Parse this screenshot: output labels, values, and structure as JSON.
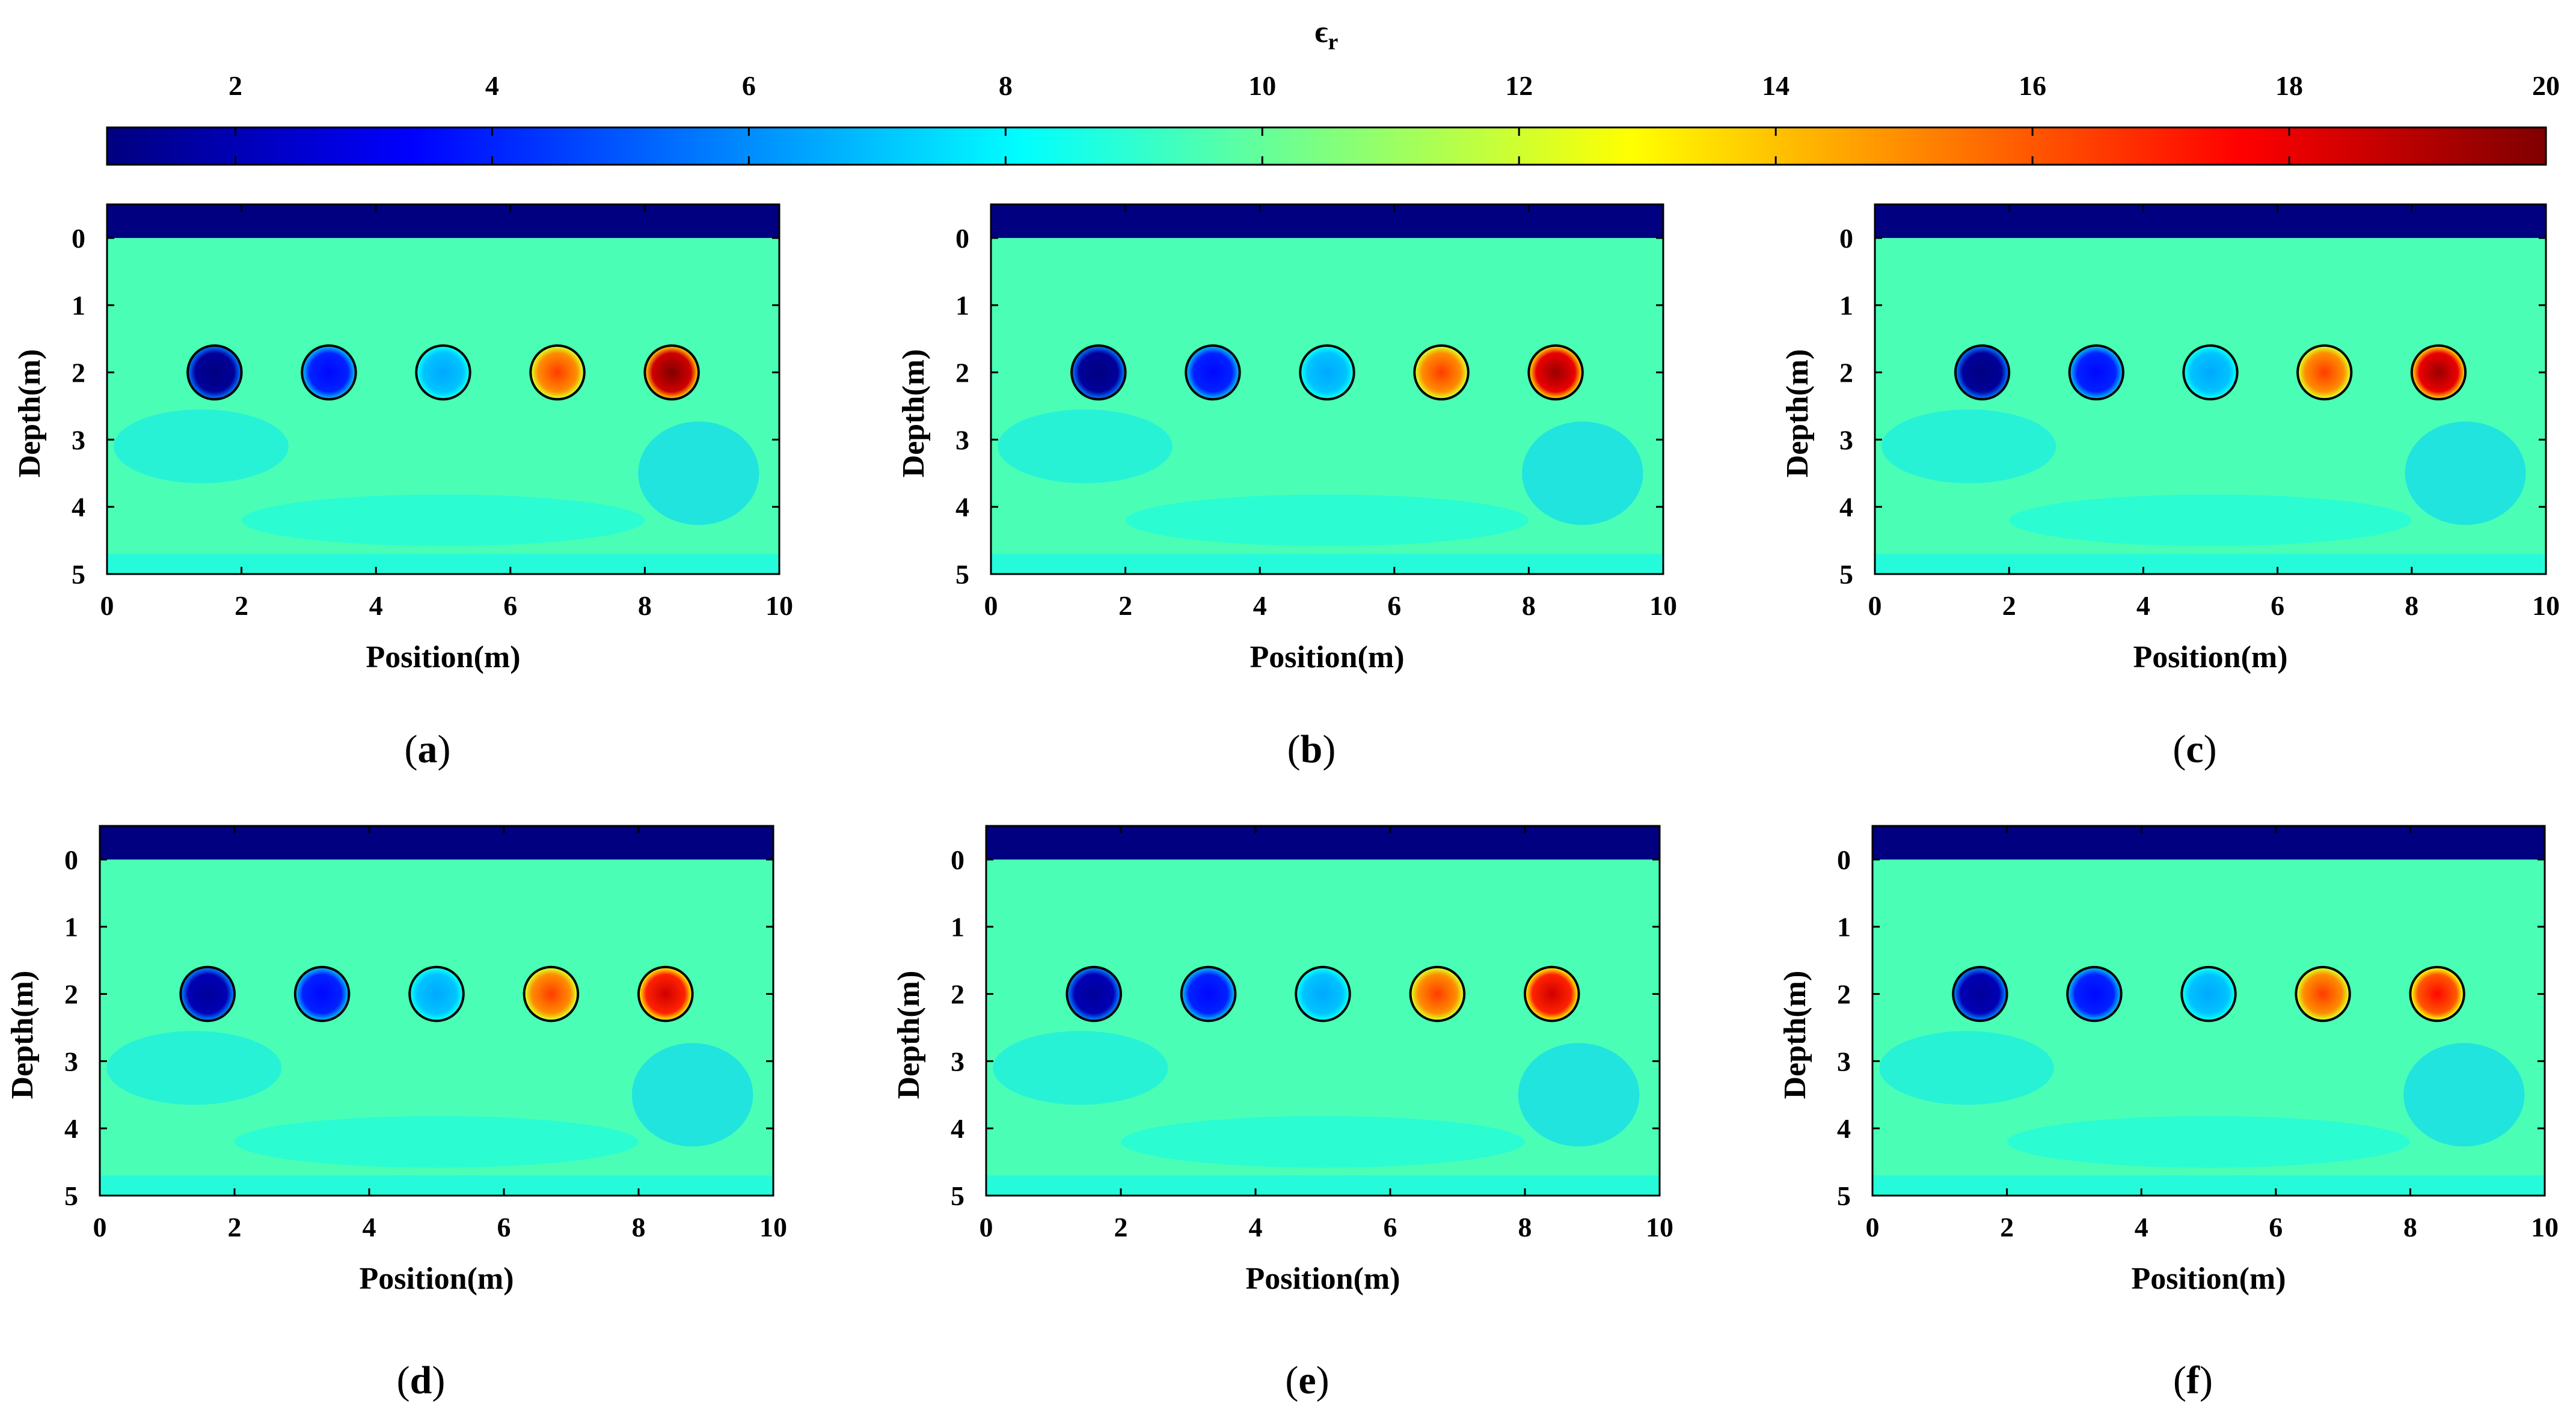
{
  "figure": {
    "colorbar": {
      "label": "ϵ",
      "label_subscript": "r",
      "min": 1,
      "max": 20,
      "ticks": [
        2,
        4,
        6,
        8,
        10,
        12,
        14,
        16,
        18,
        20
      ],
      "colormap": "jet",
      "colormap_stops": [
        "#00007f",
        "#0000ff",
        "#007fff",
        "#00ffff",
        "#7fff7f",
        "#ffff00",
        "#ff7f00",
        "#ff0000",
        "#7f0000"
      ]
    }
  },
  "chart_data": [
    {
      "type": "heatmap",
      "panel": "a",
      "caption": "(a)",
      "caption_letter": "a",
      "xlabel": "Position(m)",
      "ylabel": "Depth(m)",
      "xlim": [
        0,
        10
      ],
      "ylim": [
        5,
        -0.5
      ],
      "xticks": [
        0,
        2,
        4,
        6,
        8,
        10
      ],
      "yticks": [
        0,
        1,
        2,
        3,
        4,
        5
      ],
      "background_permittivity": 9.5,
      "air_layer_permittivity": 1,
      "targets": [
        {
          "x": 1.6,
          "depth": 2.0,
          "radius": 0.4,
          "permittivity": 1.5
        },
        {
          "x": 3.3,
          "depth": 2.0,
          "radius": 0.4,
          "permittivity": 4
        },
        {
          "x": 5.0,
          "depth": 2.0,
          "radius": 0.4,
          "permittivity": 7
        },
        {
          "x": 6.7,
          "depth": 2.0,
          "radius": 0.4,
          "permittivity": 15
        },
        {
          "x": 8.4,
          "depth": 2.0,
          "radius": 0.4,
          "permittivity": 18.5
        }
      ]
    },
    {
      "type": "heatmap",
      "panel": "b",
      "caption": "(b)",
      "caption_letter": "b",
      "xlabel": "Position(m)",
      "ylabel": "Depth(m)",
      "xlim": [
        0,
        10
      ],
      "ylim": [
        5,
        -0.5
      ],
      "xticks": [
        0,
        2,
        4,
        6,
        8,
        10
      ],
      "yticks": [
        0,
        1,
        2,
        3,
        4,
        5
      ],
      "background_permittivity": 9.5,
      "air_layer_permittivity": 1,
      "targets": [
        {
          "x": 1.6,
          "depth": 2.0,
          "radius": 0.4,
          "permittivity": 1.5
        },
        {
          "x": 3.3,
          "depth": 2.0,
          "radius": 0.4,
          "permittivity": 4
        },
        {
          "x": 5.0,
          "depth": 2.0,
          "radius": 0.4,
          "permittivity": 7
        },
        {
          "x": 6.7,
          "depth": 2.0,
          "radius": 0.4,
          "permittivity": 15
        },
        {
          "x": 8.4,
          "depth": 2.0,
          "radius": 0.4,
          "permittivity": 18
        }
      ]
    },
    {
      "type": "heatmap",
      "panel": "c",
      "caption": "(c)",
      "caption_letter": "c",
      "xlabel": "Position(m)",
      "ylabel": "Depth(m)",
      "xlim": [
        0,
        10
      ],
      "ylim": [
        5,
        -0.5
      ],
      "xticks": [
        0,
        2,
        4,
        6,
        8,
        10
      ],
      "yticks": [
        0,
        1,
        2,
        3,
        4,
        5
      ],
      "background_permittivity": 9.5,
      "air_layer_permittivity": 1,
      "targets": [
        {
          "x": 1.6,
          "depth": 2.0,
          "radius": 0.4,
          "permittivity": 1.5
        },
        {
          "x": 3.3,
          "depth": 2.0,
          "radius": 0.4,
          "permittivity": 4
        },
        {
          "x": 5.0,
          "depth": 2.0,
          "radius": 0.4,
          "permittivity": 7
        },
        {
          "x": 6.7,
          "depth": 2.0,
          "radius": 0.4,
          "permittivity": 15
        },
        {
          "x": 8.4,
          "depth": 2.0,
          "radius": 0.4,
          "permittivity": 18
        }
      ]
    },
    {
      "type": "heatmap",
      "panel": "d",
      "caption": "(d)",
      "caption_letter": "d",
      "xlabel": "Position(m)",
      "ylabel": "Depth(m)",
      "xlim": [
        0,
        10
      ],
      "ylim": [
        5,
        -0.5
      ],
      "xticks": [
        0,
        2,
        4,
        6,
        8,
        10
      ],
      "yticks": [
        0,
        1,
        2,
        3,
        4,
        5
      ],
      "background_permittivity": 9.5,
      "air_layer_permittivity": 1,
      "targets": [
        {
          "x": 1.6,
          "depth": 2.0,
          "radius": 0.4,
          "permittivity": 2
        },
        {
          "x": 3.3,
          "depth": 2.0,
          "radius": 0.4,
          "permittivity": 4
        },
        {
          "x": 5.0,
          "depth": 2.0,
          "radius": 0.4,
          "permittivity": 7
        },
        {
          "x": 6.7,
          "depth": 2.0,
          "radius": 0.4,
          "permittivity": 15
        },
        {
          "x": 8.4,
          "depth": 2.0,
          "radius": 0.4,
          "permittivity": 17
        }
      ]
    },
    {
      "type": "heatmap",
      "panel": "e",
      "caption": "(e)",
      "caption_letter": "e",
      "xlabel": "Position(m)",
      "ylabel": "Depth(m)",
      "xlim": [
        0,
        10
      ],
      "ylim": [
        5,
        -0.5
      ],
      "xticks": [
        0,
        2,
        4,
        6,
        8,
        10
      ],
      "yticks": [
        0,
        1,
        2,
        3,
        4,
        5
      ],
      "background_permittivity": 9.5,
      "air_layer_permittivity": 1,
      "targets": [
        {
          "x": 1.6,
          "depth": 2.0,
          "radius": 0.4,
          "permittivity": 2
        },
        {
          "x": 3.3,
          "depth": 2.0,
          "radius": 0.4,
          "permittivity": 4
        },
        {
          "x": 5.0,
          "depth": 2.0,
          "radius": 0.4,
          "permittivity": 7
        },
        {
          "x": 6.7,
          "depth": 2.0,
          "radius": 0.4,
          "permittivity": 15
        },
        {
          "x": 8.4,
          "depth": 2.0,
          "radius": 0.4,
          "permittivity": 17
        }
      ]
    },
    {
      "type": "heatmap",
      "panel": "f",
      "caption": "(f)",
      "caption_letter": "f",
      "xlabel": "Position(m)",
      "ylabel": "Depth(m)",
      "xlim": [
        0,
        10
      ],
      "ylim": [
        5,
        -0.5
      ],
      "xticks": [
        0,
        2,
        4,
        6,
        8,
        10
      ],
      "yticks": [
        0,
        1,
        2,
        3,
        4,
        5
      ],
      "background_permittivity": 9.5,
      "air_layer_permittivity": 1,
      "targets": [
        {
          "x": 1.6,
          "depth": 2.0,
          "radius": 0.4,
          "permittivity": 2
        },
        {
          "x": 3.3,
          "depth": 2.0,
          "radius": 0.4,
          "permittivity": 4
        },
        {
          "x": 5.0,
          "depth": 2.0,
          "radius": 0.4,
          "permittivity": 7
        },
        {
          "x": 6.7,
          "depth": 2.0,
          "radius": 0.4,
          "permittivity": 15
        },
        {
          "x": 8.4,
          "depth": 2.0,
          "radius": 0.4,
          "permittivity": 16
        }
      ]
    }
  ]
}
